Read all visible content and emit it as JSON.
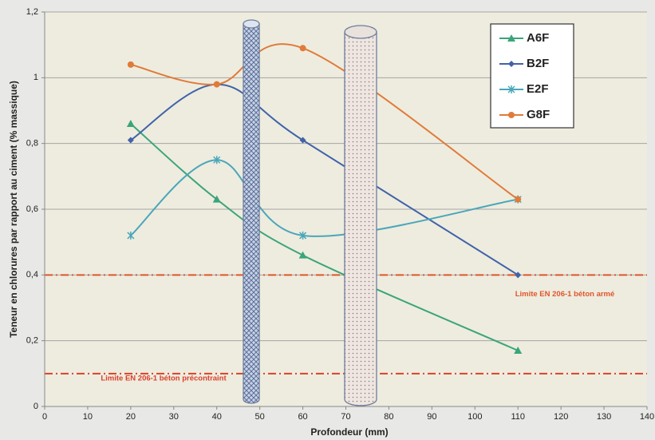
{
  "chart_data": {
    "type": "line",
    "x_label": "Profondeur (mm)",
    "y_label": "Teneur en chlorures par rapport au ciment (% massique)",
    "x": [
      20,
      40,
      60,
      110
    ],
    "series": [
      {
        "name": "A6F",
        "color": "#3aa57a",
        "marker": "triangle",
        "values": [
          0.86,
          0.63,
          0.46,
          0.17
        ]
      },
      {
        "name": "B2F",
        "color": "#4163a8",
        "marker": "diamond",
        "values": [
          0.81,
          0.98,
          0.81,
          0.4
        ]
      },
      {
        "name": "E2F",
        "color": "#4aa6ba",
        "marker": "star",
        "values": [
          0.52,
          0.75,
          0.52,
          0.63
        ]
      },
      {
        "name": "G8F",
        "color": "#e07b39",
        "marker": "circle",
        "values": [
          1.04,
          0.98,
          1.09,
          0.63
        ]
      }
    ],
    "smooth": true,
    "xlim": [
      0,
      140
    ],
    "xticks": [
      0,
      10,
      20,
      30,
      40,
      50,
      60,
      70,
      80,
      90,
      100,
      110,
      120,
      130,
      140
    ],
    "ylim": [
      0,
      1.2
    ],
    "yticks": [
      {
        "value": 0,
        "label": "0"
      },
      {
        "value": 0.2,
        "label": "0,2"
      },
      {
        "value": 0.4,
        "label": "0,4"
      },
      {
        "value": 0.6,
        "label": "0,6"
      },
      {
        "value": 0.8,
        "label": "0,8"
      },
      {
        "value": 1,
        "label": "1"
      },
      {
        "value": 1.2,
        "label": "1,2"
      }
    ],
    "grid": true,
    "reference_lines": [
      {
        "value": 0.4,
        "label": "Limite EN 206-1  béton armé",
        "color": "#e0562a"
      },
      {
        "value": 0.1,
        "label": "Limite EN 206-1  béton précontraint",
        "color": "#d9412a"
      }
    ],
    "legend": "upper right"
  }
}
